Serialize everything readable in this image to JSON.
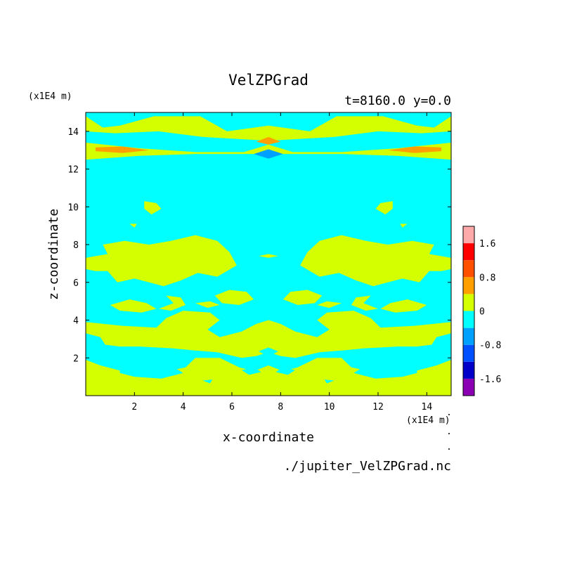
{
  "chart_data": {
    "type": "heatmap",
    "title": "VelZPGrad",
    "subtitle": "t=8160.0 y=0.0",
    "xlabel": "x-coordinate",
    "ylabel": "z-coordinate",
    "x_unit": "(x1E4 m)",
    "y_unit": "(x1E4 m)",
    "source_file": "./jupiter_VelZPGrad.nc",
    "xlim": [
      0.0,
      15.0
    ],
    "ylim": [
      0.0,
      15.0
    ],
    "x_ticks": [
      2,
      4,
      6,
      8,
      10,
      12,
      14
    ],
    "y_ticks": [
      2,
      4,
      6,
      8,
      10,
      12,
      14
    ],
    "colorbar": {
      "levels": [
        -2.0,
        -1.6,
        -1.2,
        -0.8,
        -0.4,
        0.0,
        0.4,
        0.8,
        1.2,
        1.6,
        2.0
      ],
      "colors": [
        "#8c00b4",
        "#0000c8",
        "#0050ff",
        "#00a0ff",
        "#00ffff",
        "#d4ff00",
        "#ffa000",
        "#ff5000",
        "#ff0000",
        "#ffaaaa"
      ],
      "tick_labels": [
        "1.6",
        "0.8",
        "0",
        "-0.8",
        "-1.6"
      ],
      "tick_values": [
        1.6,
        0.8,
        0.0,
        -0.8,
        -1.6
      ]
    },
    "background_level_color": "#00ffff",
    "regions": [
      {
        "color": "#d4ff00",
        "pts": [
          [
            0,
            14.8
          ],
          [
            0,
            14.0
          ],
          [
            1.2,
            13.9
          ],
          [
            3,
            14.0
          ],
          [
            4.8,
            13.7
          ],
          [
            7.5,
            13.5
          ],
          [
            10.2,
            13.7
          ],
          [
            12,
            14.0
          ],
          [
            13.8,
            13.9
          ],
          [
            15,
            14.0
          ],
          [
            15,
            14.8
          ],
          [
            14.3,
            14.2
          ],
          [
            13.6,
            14.3
          ],
          [
            12.2,
            14.8
          ],
          [
            10.3,
            14.8
          ],
          [
            9.2,
            14.0
          ],
          [
            7.5,
            14.3
          ],
          [
            5.8,
            14.0
          ],
          [
            4.7,
            14.8
          ],
          [
            2.8,
            14.8
          ],
          [
            1.4,
            14.3
          ],
          [
            0.7,
            14.2
          ]
        ]
      },
      {
        "color": "#d4ff00",
        "pts": [
          [
            0,
            13.4
          ],
          [
            2.2,
            13.1
          ],
          [
            4.5,
            12.9
          ],
          [
            6.5,
            12.9
          ],
          [
            7.5,
            13.3
          ],
          [
            8.5,
            12.9
          ],
          [
            10.5,
            12.9
          ],
          [
            12.8,
            13.1
          ],
          [
            15,
            13.4
          ],
          [
            15,
            12.5
          ],
          [
            12.8,
            12.7
          ],
          [
            10.5,
            12.8
          ],
          [
            8.5,
            12.8
          ],
          [
            6.5,
            12.8
          ],
          [
            4.5,
            12.8
          ],
          [
            2.2,
            12.7
          ],
          [
            0,
            12.5
          ]
        ]
      },
      {
        "color": "#ffa000",
        "pts": [
          [
            0.4,
            13.15
          ],
          [
            1.5,
            13.2
          ],
          [
            2.6,
            13.0
          ],
          [
            1.5,
            12.85
          ],
          [
            0.4,
            12.95
          ]
        ]
      },
      {
        "color": "#ffa000",
        "pts": [
          [
            14.6,
            13.15
          ],
          [
            13.5,
            13.2
          ],
          [
            12.4,
            13.0
          ],
          [
            13.5,
            12.85
          ],
          [
            14.6,
            12.95
          ]
        ]
      },
      {
        "color": "#ffa000",
        "pts": [
          [
            7.0,
            13.45
          ],
          [
            7.5,
            13.7
          ],
          [
            8.0,
            13.45
          ],
          [
            7.5,
            13.3
          ]
        ]
      },
      {
        "color": "#00a0ff",
        "pts": [
          [
            6.9,
            12.8
          ],
          [
            7.5,
            13.05
          ],
          [
            8.1,
            12.8
          ],
          [
            7.5,
            12.55
          ]
        ]
      },
      {
        "color": "#d4ff00",
        "pts": [
          [
            2.4,
            10.3
          ],
          [
            2.9,
            10.2
          ],
          [
            3.1,
            9.9
          ],
          [
            2.7,
            9.6
          ],
          [
            2.4,
            9.9
          ]
        ]
      },
      {
        "color": "#d4ff00",
        "pts": [
          [
            12.6,
            10.3
          ],
          [
            12.1,
            10.2
          ],
          [
            11.9,
            9.9
          ],
          [
            12.3,
            9.6
          ],
          [
            12.6,
            9.9
          ]
        ]
      },
      {
        "color": "#d4ff00",
        "pts": [
          [
            1.8,
            9.1
          ],
          [
            2.1,
            9.1
          ],
          [
            2.0,
            8.9
          ]
        ]
      },
      {
        "color": "#d4ff00",
        "pts": [
          [
            13.2,
            9.1
          ],
          [
            12.9,
            9.1
          ],
          [
            13.0,
            8.9
          ]
        ]
      },
      {
        "color": "#d4ff00",
        "pts": [
          [
            0.7,
            8.0
          ],
          [
            1.6,
            8.2
          ],
          [
            2.6,
            8.0
          ],
          [
            3.5,
            8.2
          ],
          [
            4.5,
            8.5
          ],
          [
            5.4,
            8.2
          ],
          [
            5.9,
            7.6
          ],
          [
            6.2,
            6.9
          ],
          [
            5.4,
            6.3
          ],
          [
            4.6,
            6.5
          ],
          [
            3.9,
            6.1
          ],
          [
            3.2,
            5.8
          ],
          [
            2.6,
            6.0
          ],
          [
            2.0,
            6.2
          ],
          [
            1.3,
            6.0
          ],
          [
            0.9,
            6.6
          ],
          [
            0.4,
            6.6
          ],
          [
            0,
            6.7
          ],
          [
            0,
            7.3
          ],
          [
            0.9,
            7.5
          ]
        ]
      },
      {
        "color": "#d4ff00",
        "pts": [
          [
            14.3,
            8.0
          ],
          [
            13.4,
            8.2
          ],
          [
            12.4,
            8.0
          ],
          [
            11.5,
            8.2
          ],
          [
            10.5,
            8.5
          ],
          [
            9.6,
            8.2
          ],
          [
            9.1,
            7.6
          ],
          [
            8.8,
            6.9
          ],
          [
            9.6,
            6.3
          ],
          [
            10.4,
            6.5
          ],
          [
            11.1,
            6.1
          ],
          [
            11.8,
            5.8
          ],
          [
            12.4,
            6.0
          ],
          [
            13.0,
            6.2
          ],
          [
            13.7,
            6.0
          ],
          [
            14.1,
            6.6
          ],
          [
            14.6,
            6.6
          ],
          [
            15,
            6.7
          ],
          [
            15,
            7.3
          ],
          [
            14.1,
            7.5
          ]
        ]
      },
      {
        "color": "#d4ff00",
        "pts": [
          [
            7.1,
            7.4
          ],
          [
            7.5,
            7.5
          ],
          [
            7.9,
            7.4
          ],
          [
            7.5,
            7.3
          ]
        ]
      },
      {
        "color": "#d4ff00",
        "pts": [
          [
            5.3,
            5.3
          ],
          [
            5.9,
            5.6
          ],
          [
            6.6,
            5.5
          ],
          [
            6.9,
            5.1
          ],
          [
            6.3,
            4.8
          ],
          [
            5.6,
            4.9
          ]
        ]
      },
      {
        "color": "#d4ff00",
        "pts": [
          [
            9.7,
            5.3
          ],
          [
            9.1,
            5.6
          ],
          [
            8.4,
            5.5
          ],
          [
            8.1,
            5.1
          ],
          [
            8.7,
            4.8
          ],
          [
            9.4,
            4.9
          ]
        ]
      },
      {
        "color": "#d4ff00",
        "pts": [
          [
            1.0,
            4.8
          ],
          [
            1.8,
            5.1
          ],
          [
            2.5,
            4.9
          ],
          [
            2.9,
            4.6
          ],
          [
            2.3,
            4.4
          ],
          [
            1.4,
            4.5
          ]
        ]
      },
      {
        "color": "#d4ff00",
        "pts": [
          [
            14.0,
            4.8
          ],
          [
            13.2,
            5.1
          ],
          [
            12.5,
            4.9
          ],
          [
            12.1,
            4.6
          ],
          [
            12.7,
            4.4
          ],
          [
            13.6,
            4.5
          ]
        ]
      },
      {
        "color": "#d4ff00",
        "pts": [
          [
            4.5,
            4.9
          ],
          [
            5.1,
            5.0
          ],
          [
            5.5,
            4.8
          ],
          [
            5.0,
            4.65
          ]
        ]
      },
      {
        "color": "#d4ff00",
        "pts": [
          [
            10.5,
            4.9
          ],
          [
            9.9,
            5.0
          ],
          [
            9.5,
            4.8
          ],
          [
            10.0,
            4.65
          ]
        ]
      },
      {
        "color": "#d4ff00",
        "pts": [
          [
            3.0,
            4.6
          ],
          [
            3.6,
            4.9
          ],
          [
            3.3,
            5.3
          ],
          [
            3.9,
            5.2
          ],
          [
            4.1,
            4.8
          ],
          [
            3.5,
            4.5
          ]
        ]
      },
      {
        "color": "#d4ff00",
        "pts": [
          [
            12.0,
            4.6
          ],
          [
            11.4,
            4.9
          ],
          [
            11.7,
            5.3
          ],
          [
            11.1,
            5.2
          ],
          [
            10.9,
            4.8
          ],
          [
            11.5,
            4.5
          ]
        ]
      },
      {
        "color": "#d4ff00",
        "pts": [
          [
            0,
            3.9
          ],
          [
            1.5,
            3.7
          ],
          [
            2.9,
            3.6
          ],
          [
            3.3,
            4.1
          ],
          [
            4.0,
            4.5
          ],
          [
            5.1,
            4.4
          ],
          [
            5.5,
            4.0
          ],
          [
            5.0,
            3.5
          ],
          [
            5.5,
            3.1
          ],
          [
            6.4,
            3.4
          ],
          [
            7.0,
            3.8
          ],
          [
            7.5,
            4.0
          ],
          [
            8.0,
            3.8
          ],
          [
            8.6,
            3.4
          ],
          [
            9.5,
            3.1
          ],
          [
            10.0,
            3.5
          ],
          [
            9.5,
            4.0
          ],
          [
            9.9,
            4.4
          ],
          [
            11.0,
            4.5
          ],
          [
            11.7,
            4.1
          ],
          [
            12.1,
            3.6
          ],
          [
            13.5,
            3.7
          ],
          [
            15,
            3.9
          ],
          [
            15,
            3.3
          ],
          [
            14.4,
            3.1
          ],
          [
            14.2,
            2.7
          ],
          [
            13.6,
            2.6
          ],
          [
            12.8,
            2.6
          ],
          [
            11.4,
            2.5
          ],
          [
            10.6,
            2.4
          ],
          [
            9.6,
            2.3
          ],
          [
            8.6,
            2.0
          ],
          [
            8.0,
            2.1
          ],
          [
            7.5,
            2.3
          ],
          [
            7.0,
            2.1
          ],
          [
            6.4,
            2.0
          ],
          [
            5.4,
            2.3
          ],
          [
            4.4,
            2.4
          ],
          [
            3.6,
            2.5
          ],
          [
            2.2,
            2.6
          ],
          [
            1.4,
            2.6
          ],
          [
            0.8,
            2.7
          ],
          [
            0.6,
            3.1
          ],
          [
            0,
            3.3
          ]
        ]
      },
      {
        "color": "#d4ff00",
        "pts": [
          [
            0,
            1.9
          ],
          [
            0.6,
            1.6
          ],
          [
            1.5,
            1.3
          ],
          [
            3.0,
            1.2
          ],
          [
            4.1,
            1.5
          ],
          [
            4.5,
            2.0
          ],
          [
            5.5,
            2.0
          ],
          [
            6.3,
            1.5
          ],
          [
            6.9,
            1.3
          ],
          [
            7.5,
            1.6
          ],
          [
            8.1,
            1.3
          ],
          [
            8.7,
            1.5
          ],
          [
            9.5,
            2.0
          ],
          [
            10.5,
            2.0
          ],
          [
            10.9,
            1.5
          ],
          [
            12.0,
            1.2
          ],
          [
            13.5,
            1.3
          ],
          [
            14.4,
            1.6
          ],
          [
            15,
            1.9
          ],
          [
            15,
            0
          ],
          [
            0,
            0
          ]
        ]
      }
    ],
    "cyan_holes": [
      {
        "pts": [
          [
            1.4,
            1.6
          ],
          [
            2.5,
            1.7
          ],
          [
            3.5,
            1.6
          ],
          [
            4.0,
            1.2
          ],
          [
            3.1,
            0.9
          ],
          [
            2.0,
            1.0
          ],
          [
            1.4,
            1.2
          ]
        ]
      },
      {
        "pts": [
          [
            13.6,
            1.6
          ],
          [
            12.5,
            1.7
          ],
          [
            11.5,
            1.6
          ],
          [
            11.0,
            1.2
          ],
          [
            11.9,
            0.9
          ],
          [
            13.0,
            1.0
          ],
          [
            13.6,
            1.2
          ]
        ]
      },
      {
        "pts": [
          [
            6.4,
            1.35
          ],
          [
            6.9,
            1.5
          ],
          [
            7.2,
            1.25
          ],
          [
            6.7,
            1.1
          ]
        ]
      },
      {
        "pts": [
          [
            8.6,
            1.35
          ],
          [
            8.1,
            1.5
          ],
          [
            7.8,
            1.25
          ],
          [
            8.3,
            1.1
          ]
        ]
      },
      {
        "pts": [
          [
            7.1,
            2.35
          ],
          [
            7.5,
            2.55
          ],
          [
            7.9,
            2.35
          ],
          [
            7.5,
            2.05
          ]
        ]
      },
      {
        "pts": [
          [
            4.8,
            0.8
          ],
          [
            5.2,
            0.85
          ],
          [
            5.1,
            0.65
          ]
        ]
      },
      {
        "pts": [
          [
            10.2,
            0.8
          ],
          [
            9.8,
            0.85
          ],
          [
            9.9,
            0.65
          ]
        ]
      }
    ]
  }
}
